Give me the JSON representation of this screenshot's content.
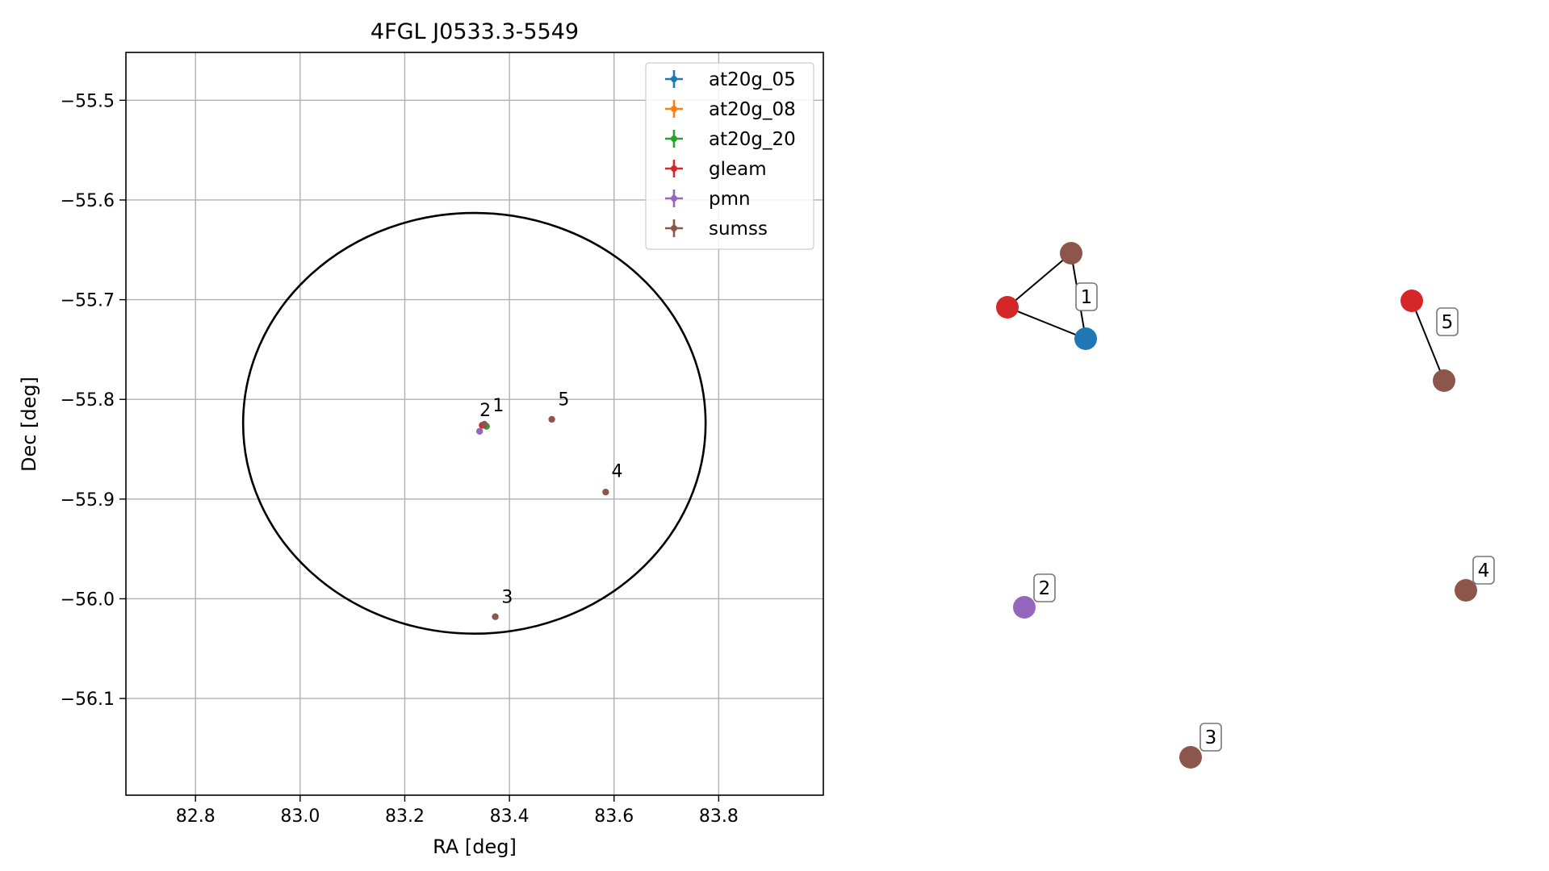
{
  "colors": {
    "at20g_05": "#1f77b4",
    "at20g_08": "#ff7f0e",
    "at20g_20": "#2ca02c",
    "gleam": "#d62728",
    "pmn": "#9467bd",
    "sumss": "#8c564b",
    "grid": "#b0b0b0",
    "axis": "#000000"
  },
  "chart_data": [
    {
      "type": "scatter",
      "title": "4FGL J0533.3-5549",
      "xlabel": "RA [deg]",
      "ylabel": "Dec [deg]",
      "xlim": [
        82.667,
        84.0
      ],
      "ylim": [
        -56.197,
        -55.452
      ],
      "xticks": [
        82.8,
        83.0,
        83.2,
        83.4,
        83.6,
        83.8
      ],
      "xtick_labels": [
        "82.8",
        "83.0",
        "83.2",
        "83.4",
        "83.6",
        "83.8"
      ],
      "yticks": [
        -55.5,
        -55.6,
        -55.7,
        -55.8,
        -55.9,
        -56.0,
        -56.1
      ],
      "ytick_labels": [
        "−55.5",
        "−55.6",
        "−55.7",
        "−55.8",
        "−55.9",
        "−56.0",
        "−56.1"
      ],
      "grid": true,
      "legend_position": "top-right",
      "legend": [
        "at20g_05",
        "at20g_08",
        "at20g_20",
        "gleam",
        "pmn",
        "sumss"
      ],
      "ellipse": {
        "center": [
          83.333,
          -55.824
        ],
        "semi_axis_ra": 0.442,
        "semi_axis_dec": 0.211
      },
      "series": [
        {
          "name": "at20g_05",
          "points": [
            [
              83.356,
              -55.827
            ]
          ]
        },
        {
          "name": "at20g_08",
          "points": [
            [
              83.356,
              -55.827
            ]
          ]
        },
        {
          "name": "at20g_20",
          "points": [
            [
              83.356,
              -55.827
            ]
          ]
        },
        {
          "name": "gleam",
          "points": [
            [
              83.348,
              -55.826
            ]
          ]
        },
        {
          "name": "pmn",
          "points": [
            [
              83.343,
              -55.832
            ]
          ]
        },
        {
          "name": "sumss",
          "points": [
            [
              83.352,
              -55.825
            ],
            [
              83.373,
              -56.018
            ],
            [
              83.584,
              -55.893
            ],
            [
              83.481,
              -55.82
            ]
          ]
        }
      ],
      "annotations": [
        {
          "text": "1",
          "x": 83.368,
          "y": -55.812
        },
        {
          "text": "2",
          "x": 83.343,
          "y": -55.817
        },
        {
          "text": "3",
          "x": 83.385,
          "y": -56.004
        },
        {
          "text": "4",
          "x": 83.595,
          "y": -55.878
        },
        {
          "text": "5",
          "x": 83.493,
          "y": -55.806
        }
      ]
    },
    {
      "type": "network",
      "nodes": [
        {
          "id": "n1",
          "catalog": "sumss"
        },
        {
          "id": "n2",
          "catalog": "gleam"
        },
        {
          "id": "n3",
          "catalog": "at20g_05"
        },
        {
          "id": "n4",
          "catalog": "pmn"
        },
        {
          "id": "n5",
          "catalog": "sumss"
        },
        {
          "id": "n6",
          "catalog": "sumss"
        },
        {
          "id": "n7",
          "catalog": "gleam"
        },
        {
          "id": "n8",
          "catalog": "sumss"
        }
      ],
      "edges": [
        [
          "n1",
          "n2"
        ],
        [
          "n1",
          "n3"
        ],
        [
          "n2",
          "n3"
        ],
        [
          "n7",
          "n8"
        ]
      ],
      "labels": [
        {
          "text": "1",
          "node": "n3"
        },
        {
          "text": "2",
          "node": "n4"
        },
        {
          "text": "3",
          "node": "n5"
        },
        {
          "text": "4",
          "node": "n6"
        },
        {
          "text": "5",
          "node": "n8"
        }
      ]
    }
  ]
}
